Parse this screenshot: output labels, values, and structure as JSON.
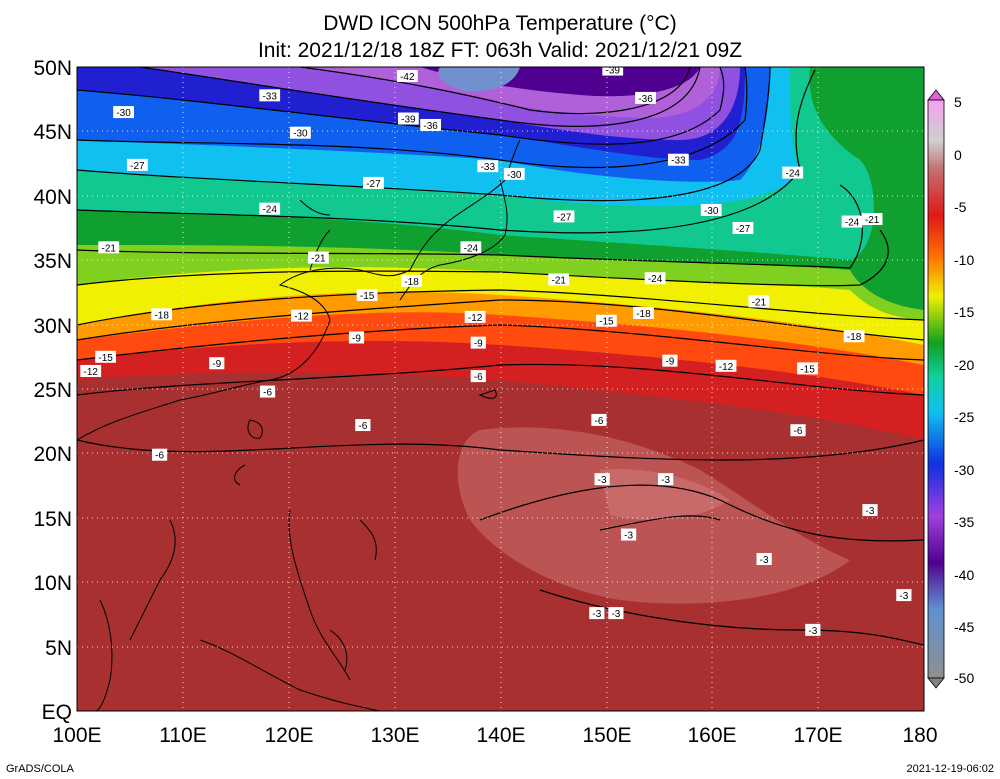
{
  "title": {
    "line1": "DWD ICON 500hPa Temperature (°C)",
    "line2": "Init: 2021/12/18 18Z  FT: 063h  Valid: 2021/12/21 09Z"
  },
  "axes": {
    "lon_ticks": [
      "100E",
      "110E",
      "120E",
      "130E",
      "140E",
      "150E",
      "160E",
      "170E",
      "180"
    ],
    "lat_ticks": [
      "50N",
      "45N",
      "40N",
      "35N",
      "30N",
      "25N",
      "20N",
      "15N",
      "10N",
      "5N",
      "EQ"
    ],
    "lon_range": [
      100,
      180
    ],
    "lat_range": [
      0,
      50
    ]
  },
  "colorbar": {
    "labels": [
      "5",
      "0",
      "-5",
      "-10",
      "-15",
      "-20",
      "-25",
      "-30",
      "-35",
      "-40",
      "-45",
      "-50"
    ],
    "range": [
      -50,
      5
    ]
  },
  "footer": {
    "left": "GrADS/COLA",
    "right": "2021-12-19-06:02"
  },
  "contour_labels": [
    {
      "lon": 104.4,
      "lat": 46.5,
      "text": "-30"
    },
    {
      "lon": 118.2,
      "lat": 47.8,
      "text": "-33"
    },
    {
      "lon": 131.2,
      "lat": 49.3,
      "text": "-42"
    },
    {
      "lon": 150.6,
      "lat": 49.8,
      "text": "-39"
    },
    {
      "lon": 131.3,
      "lat": 46.0,
      "text": "-39"
    },
    {
      "lon": 133.4,
      "lat": 45.5,
      "text": "-36"
    },
    {
      "lon": 153.7,
      "lat": 47.6,
      "text": "-36"
    },
    {
      "lon": 121.1,
      "lat": 44.9,
      "text": "-30"
    },
    {
      "lon": 105.7,
      "lat": 42.4,
      "text": "-27"
    },
    {
      "lon": 156.8,
      "lat": 42.8,
      "text": "-33"
    },
    {
      "lon": 138.8,
      "lat": 42.3,
      "text": "-33"
    },
    {
      "lon": 141.3,
      "lat": 41.7,
      "text": "-30"
    },
    {
      "lon": 128.0,
      "lat": 41.0,
      "text": "-27"
    },
    {
      "lon": 167.6,
      "lat": 41.8,
      "text": "-24"
    },
    {
      "lon": 118.2,
      "lat": 39.0,
      "text": "-24"
    },
    {
      "lon": 159.9,
      "lat": 38.9,
      "text": "-30"
    },
    {
      "lon": 146.0,
      "lat": 38.4,
      "text": "-27"
    },
    {
      "lon": 173.2,
      "lat": 38.0,
      "text": "-24"
    },
    {
      "lon": 175.1,
      "lat": 38.2,
      "text": "-21"
    },
    {
      "lon": 162.9,
      "lat": 37.5,
      "text": "-27"
    },
    {
      "lon": 103.0,
      "lat": 36.0,
      "text": "-21"
    },
    {
      "lon": 137.2,
      "lat": 36.0,
      "text": "-24"
    },
    {
      "lon": 122.8,
      "lat": 35.2,
      "text": "-21"
    },
    {
      "lon": 145.5,
      "lat": 33.5,
      "text": "-21"
    },
    {
      "lon": 154.6,
      "lat": 33.6,
      "text": "-24"
    },
    {
      "lon": 131.6,
      "lat": 33.4,
      "text": "-18"
    },
    {
      "lon": 127.4,
      "lat": 32.3,
      "text": "-15"
    },
    {
      "lon": 164.4,
      "lat": 31.8,
      "text": "-21"
    },
    {
      "lon": 108.0,
      "lat": 30.8,
      "text": "-18"
    },
    {
      "lon": 121.2,
      "lat": 30.7,
      "text": "-12"
    },
    {
      "lon": 153.5,
      "lat": 30.9,
      "text": "-18"
    },
    {
      "lon": 137.6,
      "lat": 30.6,
      "text": "-12"
    },
    {
      "lon": 150.0,
      "lat": 30.3,
      "text": "-15"
    },
    {
      "lon": 173.4,
      "lat": 29.1,
      "text": "-18"
    },
    {
      "lon": 126.4,
      "lat": 29.0,
      "text": "-9"
    },
    {
      "lon": 137.9,
      "lat": 28.6,
      "text": "-9"
    },
    {
      "lon": 102.7,
      "lat": 27.5,
      "text": "-15"
    },
    {
      "lon": 101.3,
      "lat": 26.4,
      "text": "-12"
    },
    {
      "lon": 113.2,
      "lat": 27.0,
      "text": "-9"
    },
    {
      "lon": 156.0,
      "lat": 27.2,
      "text": "-9"
    },
    {
      "lon": 161.3,
      "lat": 26.8,
      "text": "-12"
    },
    {
      "lon": 169.0,
      "lat": 26.6,
      "text": "-15"
    },
    {
      "lon": 137.9,
      "lat": 26.0,
      "text": "-6"
    },
    {
      "lon": 118.0,
      "lat": 24.8,
      "text": "-6"
    },
    {
      "lon": 127.0,
      "lat": 22.2,
      "text": "-6"
    },
    {
      "lon": 149.3,
      "lat": 22.6,
      "text": "-6"
    },
    {
      "lon": 168.1,
      "lat": 21.8,
      "text": "-6"
    },
    {
      "lon": 107.8,
      "lat": 19.9,
      "text": "-6"
    },
    {
      "lon": 149.6,
      "lat": 18.0,
      "text": "-3"
    },
    {
      "lon": 155.6,
      "lat": 18.0,
      "text": "-3"
    },
    {
      "lon": 174.9,
      "lat": 15.6,
      "text": "-3"
    },
    {
      "lon": 152.1,
      "lat": 13.7,
      "text": "-3"
    },
    {
      "lon": 164.9,
      "lat": 11.8,
      "text": "-3"
    },
    {
      "lon": 178.1,
      "lat": 9.0,
      "text": "-3"
    },
    {
      "lon": 149.1,
      "lat": 7.6,
      "text": "-3"
    },
    {
      "lon": 150.9,
      "lat": 7.6,
      "text": "-3"
    },
    {
      "lon": 169.5,
      "lat": 6.3,
      "text": "-3"
    }
  ]
}
